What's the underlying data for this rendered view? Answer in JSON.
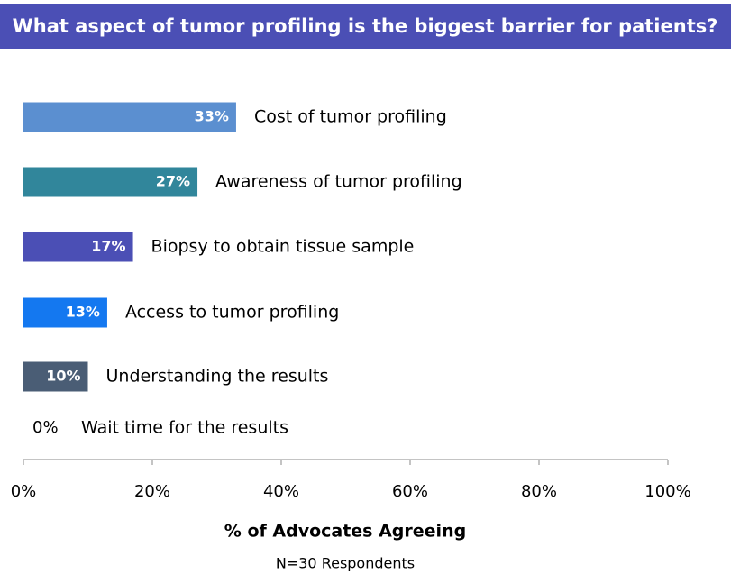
{
  "chart_data": {
    "type": "barh",
    "title": "What aspect of tumor profiling is the biggest barrier for patients?",
    "categories": [
      "Cost of tumor profiling",
      "Awareness of tumor profiling",
      "Biopsy to obtain tissue sample",
      "Access to tumor profiling",
      "Understanding the results",
      "Wait time for the results"
    ],
    "values": [
      33,
      27,
      17,
      13,
      10,
      0
    ],
    "value_labels": [
      "33%",
      "27%",
      "17%",
      "13%",
      "10%",
      "0%"
    ],
    "colors": [
      "#5b8fd0",
      "#31869b",
      "#4b4fb5",
      "#1478f0",
      "#4a5d75",
      "#888888"
    ],
    "xlim": [
      0,
      100
    ],
    "xticks": [
      {
        "value": 0,
        "label": "0%"
      },
      {
        "value": 20,
        "label": "20%"
      },
      {
        "value": 40,
        "label": "40%"
      },
      {
        "value": 60,
        "label": "60%"
      },
      {
        "value": 80,
        "label": "80%"
      },
      {
        "value": 100,
        "label": "100%"
      }
    ],
    "xlabel": "% of Advocates Agreeing",
    "annotation": "N=30 Respondents"
  }
}
